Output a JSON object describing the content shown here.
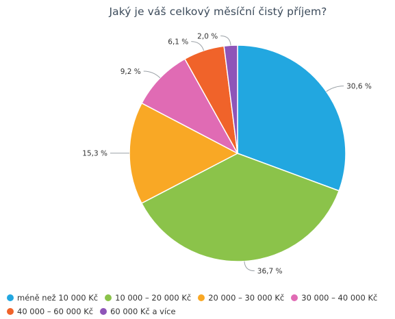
{
  "chart_data": {
    "type": "pie",
    "title": "Jaký je váš celkový měsíční čistý příjem?",
    "legend_placement": "bottom",
    "categories": [
      "méně než 10 000 Kč",
      "10 000 – 20 000 Kč",
      "20 000 – 30 000 Kč",
      "30 000 – 40 000 Kč",
      "40 000 – 60 000 Kč",
      "60 000 Kč a více"
    ],
    "values": [
      30.6,
      36.7,
      15.3,
      9.2,
      6.1,
      2.0
    ],
    "labels": [
      "30,6 %",
      "36,7 %",
      "15,3 %",
      "9,2 %",
      "6,1 %",
      "2,0 %"
    ],
    "colors": [
      "#22a7e0",
      "#8bc34a",
      "#f9a825",
      "#e06bb4",
      "#f0632a",
      "#8e55b8"
    ]
  }
}
